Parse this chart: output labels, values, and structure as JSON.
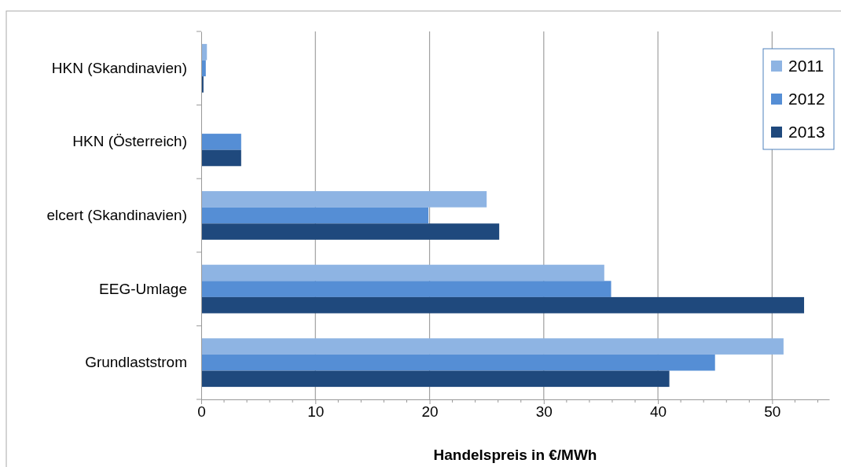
{
  "chart_data": {
    "type": "bar",
    "orientation": "horizontal",
    "xlabel": "Handelspreis in €/MWh",
    "categories": [
      "HKN (Skandinavien)",
      "HKN (Österreich)",
      "elcert (Skandinavien)",
      "EEG-Umlage",
      "Grundlaststrom"
    ],
    "series": [
      {
        "name": "2011",
        "color": "#8eb4e3",
        "values": [
          0.5,
          null,
          25.0,
          35.3,
          51.0
        ]
      },
      {
        "name": "2012",
        "color": "#558ed5",
        "values": [
          0.4,
          3.5,
          19.9,
          35.9,
          45.0
        ]
      },
      {
        "name": "2013",
        "color": "#1f497d",
        "values": [
          0.2,
          3.5,
          26.1,
          52.8,
          41.0
        ]
      }
    ],
    "xlim": [
      0,
      55
    ],
    "xticks": [
      0,
      10,
      20,
      30,
      40,
      50
    ],
    "grid": "x",
    "legend": "top right"
  }
}
